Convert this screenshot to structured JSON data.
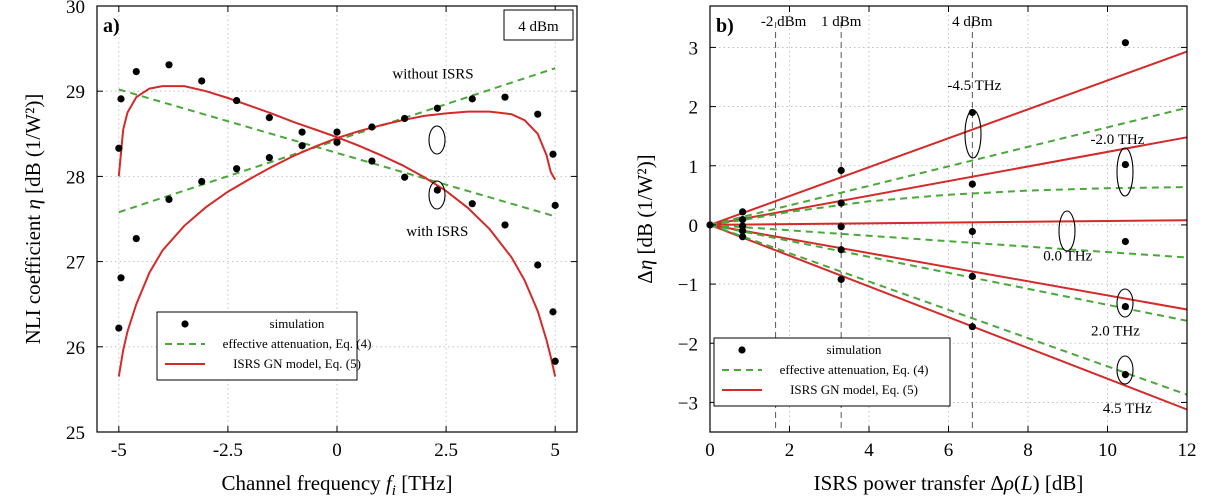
{
  "chart_data": [
    {
      "type": "scatter",
      "panel_label": "a)",
      "corner_label": "4 dBm",
      "xlabel": "Channel frequency f_i [THz]",
      "ylabel": "NLI coefficient η [dB (1/W²)]",
      "xlim": [
        -5.5,
        5.5
      ],
      "ylim": [
        25,
        30
      ],
      "xticks": [
        -5,
        -2.5,
        0,
        2.5,
        5
      ],
      "xtick_labels": [
        "-5",
        "-2.5",
        "0",
        "2.5",
        "5"
      ],
      "yticks": [
        25,
        26,
        27,
        28,
        29,
        30
      ],
      "ytick_labels": [
        "25",
        "26",
        "27",
        "28",
        "29",
        "30"
      ],
      "grid": true,
      "legend": {
        "placement": "bottom-left",
        "entries": [
          "simulation",
          "effective attenuation, Eq. (4)",
          "ISRS GN model, Eq. (5)"
        ]
      },
      "annotations": [
        {
          "text": "without ISRS",
          "x": 2.2,
          "y": 29.15
        },
        {
          "text": "with ISRS",
          "x": 2.3,
          "y": 27.3
        }
      ],
      "series": [
        {
          "name": "simulation",
          "kind": "points",
          "x": [
            -5,
            -4.95,
            -4.6,
            -3.85,
            -3.1,
            -2.3,
            -1.55,
            -0.8,
            0,
            0.8,
            1.55,
            2.3,
            3.1,
            3.85,
            4.6,
            4.95,
            5
          ],
          "y": [
            28.33,
            28.91,
            29.23,
            29.31,
            29.12,
            28.89,
            28.69,
            28.52,
            28.52,
            28.58,
            28.68,
            28.8,
            28.91,
            28.93,
            28.73,
            28.26,
            27.66
          ]
        },
        {
          "name": "simulation",
          "kind": "points",
          "x": [
            -5,
            -4.95,
            -4.6,
            -3.85,
            -3.1,
            -2.3,
            -1.55,
            -0.8,
            0,
            0.8,
            1.55,
            2.3,
            3.1,
            3.85,
            4.6,
            4.95,
            5
          ],
          "y": [
            26.22,
            26.81,
            27.27,
            27.73,
            27.94,
            28.09,
            28.22,
            28.36,
            28.4,
            28.18,
            27.99,
            27.84,
            27.68,
            27.43,
            26.96,
            26.41,
            25.83
          ]
        },
        {
          "name": "effective attenuation, Eq. (4)",
          "kind": "line",
          "style": "green-dashed",
          "x": [
            -5,
            5
          ],
          "y": [
            29.02,
            27.53
          ]
        },
        {
          "name": "effective attenuation, Eq. (4)",
          "kind": "line",
          "style": "green-dashed",
          "x": [
            -5,
            5
          ],
          "y": [
            27.58,
            29.27
          ]
        },
        {
          "name": "ISRS GN model, Eq. (5)",
          "kind": "line",
          "style": "red",
          "x": [
            -5,
            -4.9,
            -4.8,
            -4.6,
            -4.3,
            -4,
            -3.5,
            -3,
            -2.5,
            -2,
            -1.5,
            -1,
            -0.5,
            0,
            0.5,
            1,
            1.5,
            2,
            2.5,
            3,
            3.5,
            4,
            4.3,
            4.6,
            4.8,
            4.9,
            5
          ],
          "y": [
            28.0,
            28.55,
            28.75,
            28.93,
            29.03,
            29.06,
            29.06,
            29.0,
            28.92,
            28.83,
            28.74,
            28.64,
            28.55,
            28.46,
            28.36,
            28.25,
            28.13,
            27.99,
            27.83,
            27.63,
            27.38,
            27.05,
            26.78,
            26.42,
            26.08,
            25.88,
            25.65
          ]
        },
        {
          "name": "ISRS GN model, Eq. (5)",
          "kind": "line",
          "style": "red",
          "x": [
            -5,
            -4.9,
            -4.8,
            -4.6,
            -4.3,
            -4,
            -3.5,
            -3,
            -2.5,
            -2,
            -1.5,
            -1,
            -0.5,
            0,
            0.5,
            1,
            1.5,
            2,
            2.5,
            3,
            3.5,
            4,
            4.3,
            4.6,
            4.8,
            4.9,
            5
          ],
          "y": [
            25.65,
            25.96,
            26.18,
            26.5,
            26.87,
            27.13,
            27.42,
            27.64,
            27.82,
            27.97,
            28.11,
            28.24,
            28.35,
            28.45,
            28.53,
            28.6,
            28.66,
            28.71,
            28.74,
            28.76,
            28.76,
            28.73,
            28.66,
            28.5,
            28.25,
            28.05,
            27.96
          ]
        }
      ]
    },
    {
      "type": "scatter",
      "panel_label": "b)",
      "xlabel": "ISRS power transfer Δρ(L) [dB]",
      "ylabel": "Δη [dB (1/W²)]",
      "xlim": [
        0,
        12
      ],
      "ylim": [
        -3.5,
        3.7
      ],
      "xticks": [
        0,
        2,
        4,
        6,
        8,
        10,
        12
      ],
      "xtick_labels": [
        "0",
        "2",
        "4",
        "6",
        "8",
        "10",
        "12"
      ],
      "yticks": [
        -3,
        -2,
        -1,
        0,
        1,
        2,
        3
      ],
      "ytick_labels": [
        "−3",
        "−2",
        "−1",
        "0",
        "1",
        "2",
        "3"
      ],
      "grid": true,
      "vertical_markers": [
        {
          "x": 1.65,
          "label": "-2 dBm"
        },
        {
          "x": 3.3,
          "label": "1 dBm"
        },
        {
          "x": 6.6,
          "label": "4 dBm"
        }
      ],
      "legend": {
        "placement": "bottom-left",
        "entries": [
          "simulation",
          "effective attenuation, Eq. (4)",
          "ISRS GN model, Eq. (5)"
        ]
      },
      "annotations": [
        {
          "text": "-4.5 THz",
          "x": 6.65,
          "y": 2.28
        },
        {
          "text": "-2.0 THz",
          "x": 10.25,
          "y": 1.37
        },
        {
          "text": "0.0 THz",
          "x": 9.0,
          "y": -0.6
        },
        {
          "text": "2.0 THz",
          "x": 10.2,
          "y": -1.87
        },
        {
          "text": "4.5 THz",
          "x": 10.5,
          "y": -3.18
        }
      ],
      "series": [
        {
          "name": "simulation",
          "kind": "points",
          "x": [
            0,
            0.82,
            0.82,
            0.82,
            0.82,
            0.82,
            3.3,
            3.3,
            3.3,
            3.3,
            3.3,
            6.6,
            6.6,
            6.6,
            6.6,
            6.6,
            10.45,
            10.45,
            10.45,
            10.45,
            10.45
          ],
          "y": [
            0,
            0.22,
            0.09,
            -0.02,
            -0.1,
            -0.2,
            0.92,
            0.37,
            -0.03,
            -0.42,
            -0.92,
            1.9,
            0.69,
            -0.11,
            -0.87,
            -1.72,
            3.08,
            1.02,
            -0.28,
            -1.38,
            -2.53
          ]
        },
        {
          "name": "ISRS GN model, Eq. (5)",
          "kind": "line",
          "style": "red",
          "x": [
            0,
            12
          ],
          "y": [
            0,
            2.93
          ]
        },
        {
          "name": "ISRS GN model, Eq. (5)",
          "kind": "line",
          "style": "red",
          "x": [
            0,
            12
          ],
          "y": [
            0,
            1.48
          ]
        },
        {
          "name": "ISRS GN model, Eq. (5)",
          "kind": "line",
          "style": "red",
          "x": [
            0,
            12
          ],
          "y": [
            0,
            0.08
          ]
        },
        {
          "name": "ISRS GN model, Eq. (5)",
          "kind": "line",
          "style": "red",
          "x": [
            0,
            12
          ],
          "y": [
            0,
            -1.43
          ]
        },
        {
          "name": "ISRS GN model, Eq. (5)",
          "kind": "line",
          "style": "red",
          "x": [
            0,
            12
          ],
          "y": [
            0,
            -3.12
          ]
        },
        {
          "name": "effective attenuation, Eq. (4)",
          "kind": "line",
          "style": "green-dashed",
          "x": [
            0,
            12
          ],
          "y": [
            0,
            1.98
          ]
        },
        {
          "name": "effective attenuation, Eq. (4)",
          "kind": "line",
          "style": "green-dashed",
          "x": [
            0,
            0.8,
            2,
            4,
            6,
            8,
            10,
            12
          ],
          "y": [
            0,
            0.08,
            0.22,
            0.4,
            0.51,
            0.58,
            0.62,
            0.64
          ]
        },
        {
          "name": "effective attenuation, Eq. (4)",
          "kind": "line",
          "style": "green-dashed",
          "x": [
            0,
            12
          ],
          "y": [
            0,
            -0.55
          ]
        },
        {
          "name": "effective attenuation, Eq. (4)",
          "kind": "line",
          "style": "green-dashed",
          "x": [
            0,
            12
          ],
          "y": [
            0,
            -1.62
          ]
        },
        {
          "name": "effective attenuation, Eq. (4)",
          "kind": "line",
          "style": "green-dashed",
          "x": [
            0,
            12
          ],
          "y": [
            0,
            -2.87
          ]
        }
      ]
    }
  ]
}
